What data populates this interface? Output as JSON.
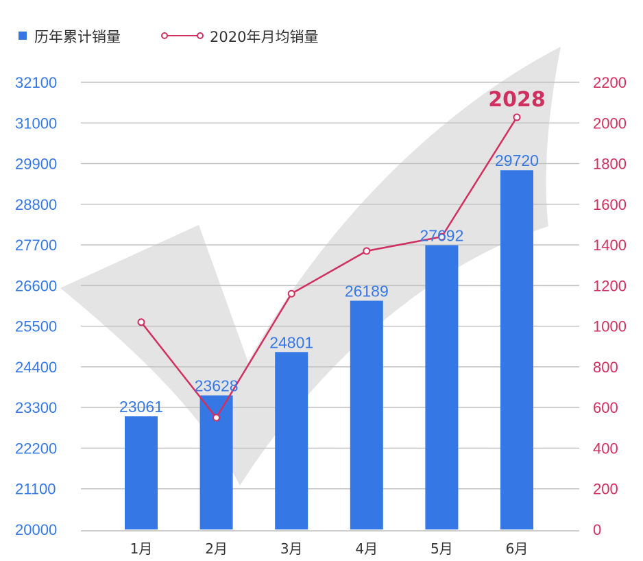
{
  "chart_data": {
    "type": "bar",
    "categories": [
      "1月",
      "2月",
      "3月",
      "4月",
      "5月",
      "6月"
    ],
    "series": [
      {
        "name": "历年累计销量",
        "type": "bar",
        "axis": "left",
        "values": [
          23061,
          23628,
          24801,
          26189,
          27692,
          29720
        ],
        "labels": [
          "23061",
          "23628",
          "24801",
          "26189",
          "27692",
          "29720"
        ],
        "color": "#3578E5"
      },
      {
        "name": "2020年月均销量",
        "type": "line",
        "axis": "right",
        "values": [
          1020,
          550,
          1160,
          1370,
          1440,
          2028
        ],
        "color": "#D0305F"
      }
    ],
    "y_left": {
      "ticks": [
        "20000",
        "21100",
        "22200",
        "23300",
        "24400",
        "25500",
        "26600",
        "27700",
        "28800",
        "29900",
        "31000",
        "32100"
      ],
      "color": "#3578E5"
    },
    "y_right": {
      "ticks": [
        "0",
        "200",
        "400",
        "600",
        "800",
        "1000",
        "1200",
        "1400",
        "1600",
        "1800",
        "2000",
        "2200"
      ],
      "color": "#D0305F"
    },
    "annotation": {
      "text": "2028",
      "category": "6月",
      "color": "#D0305F"
    },
    "legend_position": "top-left",
    "grid": true,
    "background_graphic": "checkmark"
  }
}
